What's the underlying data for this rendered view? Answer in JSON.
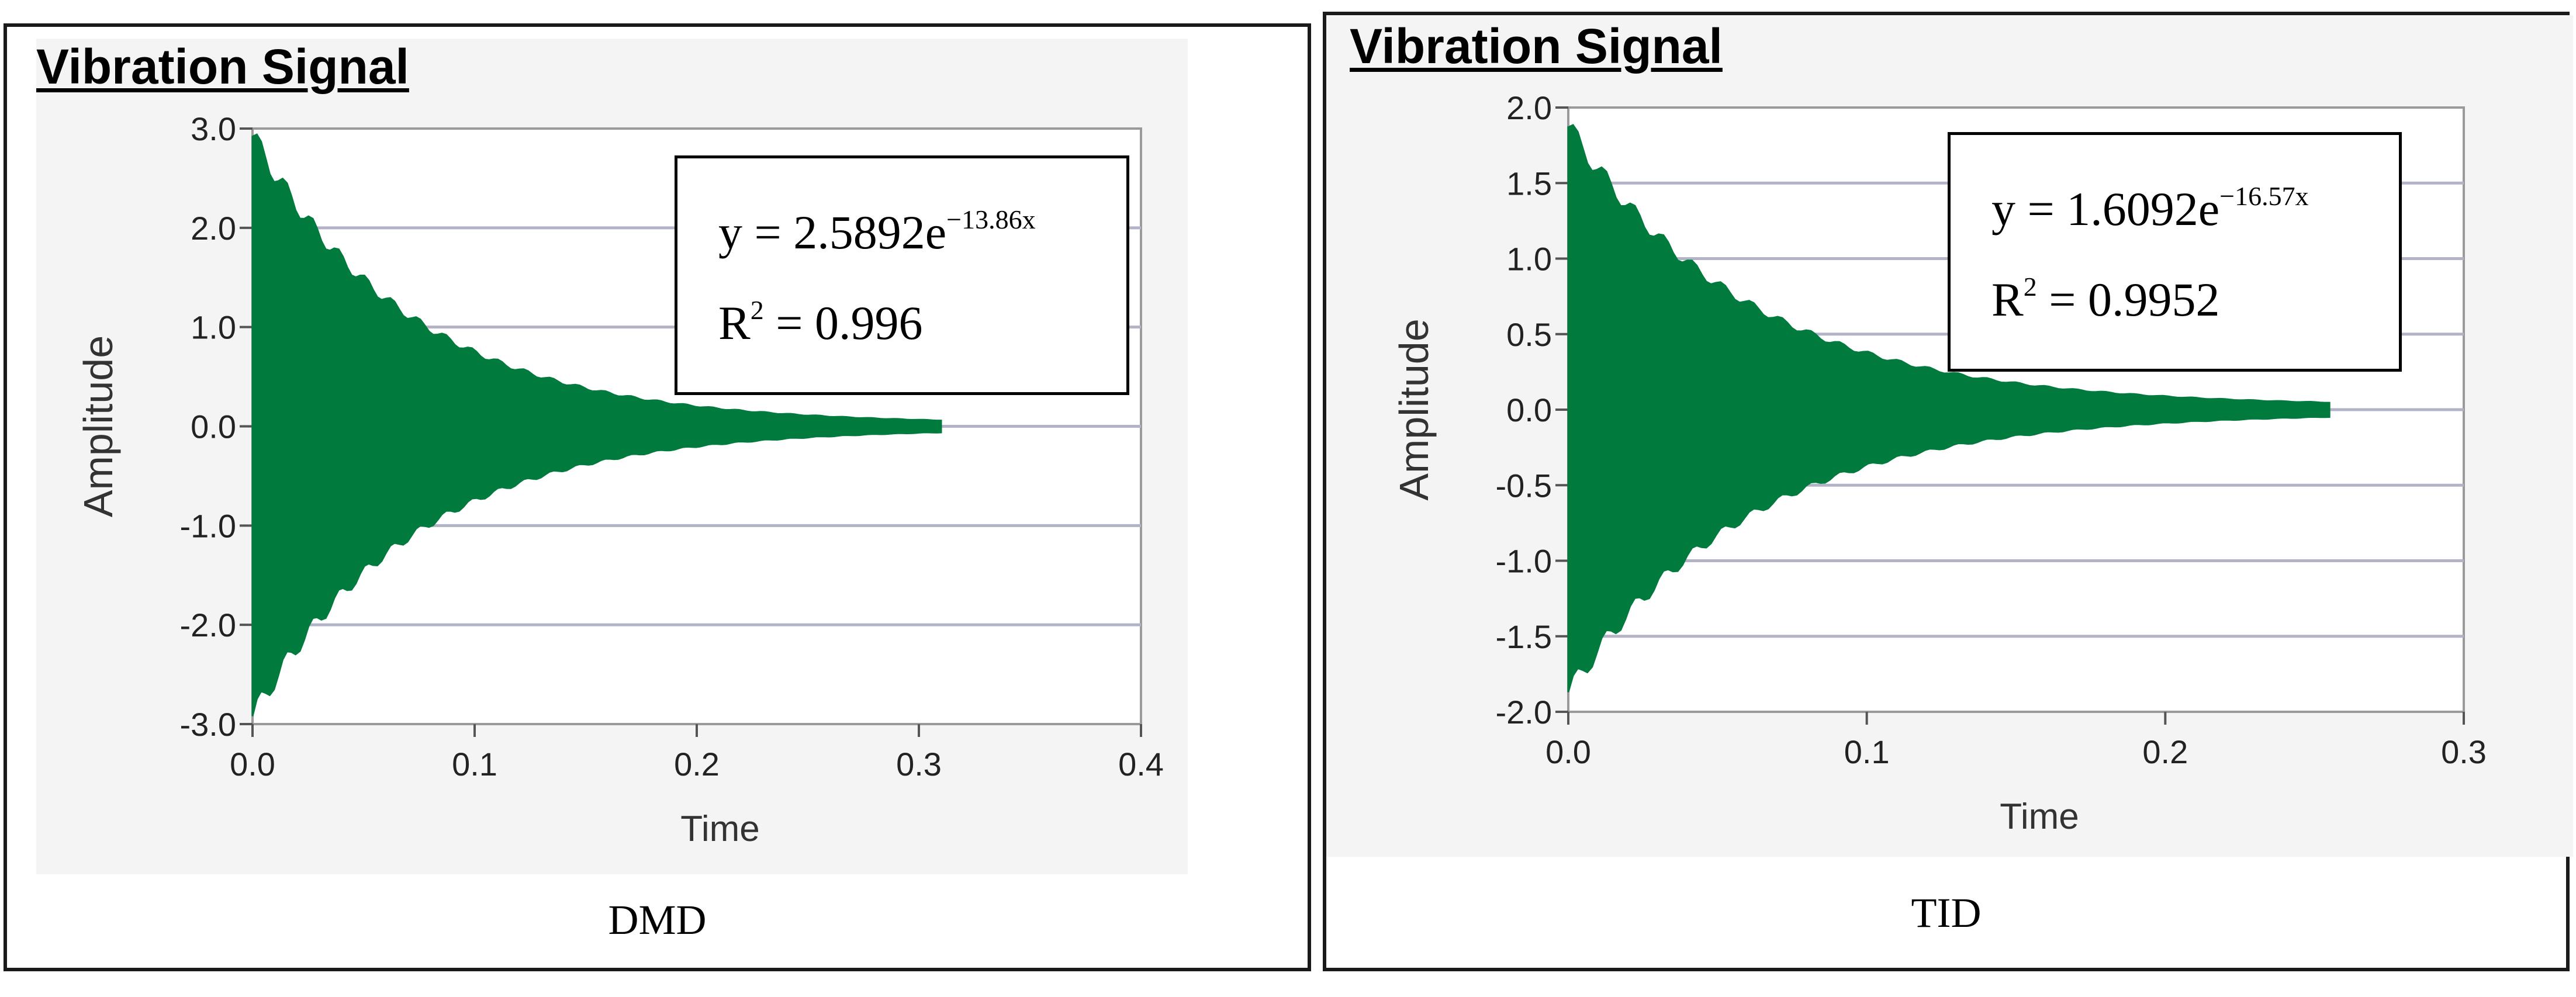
{
  "chart_data": [
    {
      "type": "area",
      "title": "Vibration Signal",
      "caption": "DMD",
      "xlabel": "Time",
      "ylabel": "Amplitude",
      "xlim": [
        0.0,
        0.4
      ],
      "ylim": [
        -3.0,
        3.0
      ],
      "xticks": [
        "0.0",
        "0.1",
        "0.2",
        "0.3",
        "0.4"
      ],
      "yticks": [
        "3.0",
        "2.0",
        "1.0",
        "0.0",
        "-1.0",
        "-2.0",
        "-3.0"
      ],
      "grid": "horizontal",
      "color": "#007a3d",
      "signal": {
        "amplitude": 2.9,
        "decay": 13.86,
        "x_end": 0.31
      },
      "fit": {
        "equation_prefix": "y = 2.5892e",
        "exponent": "−13.86x",
        "r2_prefix": "R",
        "r2_sup": "2",
        "r2_suffix": " = 0.996"
      }
    },
    {
      "type": "area",
      "title": "Vibration Signal",
      "caption": "TID",
      "xlabel": "Time",
      "ylabel": "Amplitude",
      "xlim": [
        0.0,
        0.3
      ],
      "ylim": [
        -2.0,
        2.0
      ],
      "xticks": [
        "0.0",
        "0.1",
        "0.2",
        "0.3"
      ],
      "yticks": [
        "2.0",
        "1.5",
        "1.0",
        "0.5",
        "0.0",
        "-0.5",
        "-1.0",
        "-1.5",
        "-2.0"
      ],
      "grid": "horizontal",
      "color": "#007a3d",
      "signal": {
        "amplitude": 1.85,
        "decay": 16.57,
        "x_end": 0.255
      },
      "fit": {
        "equation_prefix": "y = 1.6092e",
        "exponent": "−16.57x",
        "r2_prefix": "R",
        "r2_sup": "2",
        "r2_suffix": " = 0.9952"
      }
    }
  ]
}
